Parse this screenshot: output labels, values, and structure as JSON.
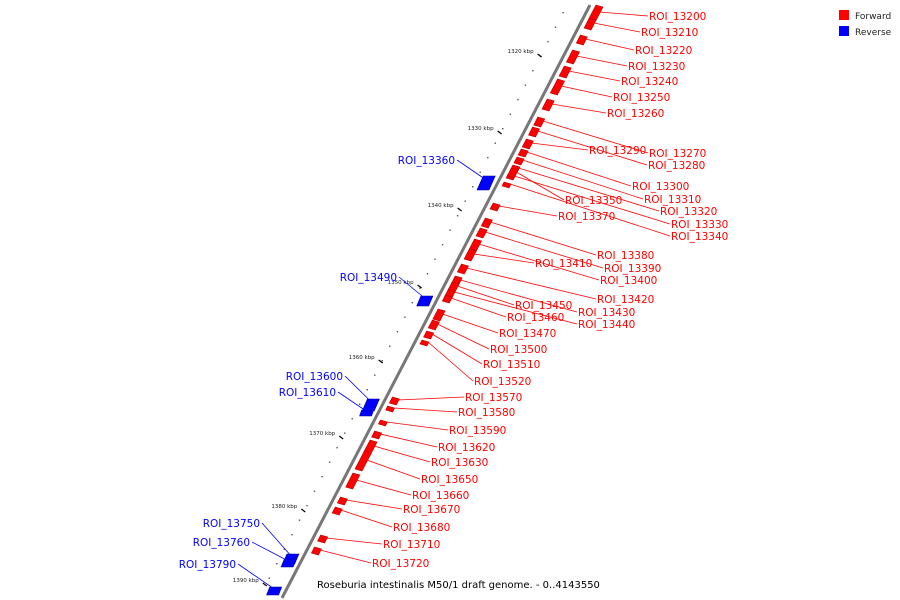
{
  "caption": "Roseburia intestinalis M50/1 draft genome. - 0..4143550",
  "legend": [
    {
      "label": "Forward",
      "color": "#ff0000"
    },
    {
      "label": "Reverse",
      "color": "#0000ff"
    }
  ],
  "colors": {
    "forward": "#ff0000",
    "reverse": "#0000ff",
    "axis": "#777777"
  },
  "ticks": [
    {
      "label": "1320 kbp",
      "kbp": 1320
    },
    {
      "label": "1330 kbp",
      "kbp": 1330
    },
    {
      "label": "1340 kbp",
      "kbp": 1340
    },
    {
      "label": "1350 kbp",
      "kbp": 1350
    },
    {
      "label": "1360 kbp",
      "kbp": 1360
    },
    {
      "label": "1370 kbp",
      "kbp": 1370
    },
    {
      "label": "1380 kbp",
      "kbp": 1380
    },
    {
      "label": "1390 kbp",
      "kbp": 1390
    }
  ],
  "forward_features": [
    {
      "name": "ROI_13200"
    },
    {
      "name": "ROI_13210"
    },
    {
      "name": "ROI_13220"
    },
    {
      "name": "ROI_13230"
    },
    {
      "name": "ROI_13240"
    },
    {
      "name": "ROI_13250"
    },
    {
      "name": "ROI_13260"
    },
    {
      "name": "ROI_13270"
    },
    {
      "name": "ROI_13280"
    },
    {
      "name": "ROI_13290"
    },
    {
      "name": "ROI_13300"
    },
    {
      "name": "ROI_13310"
    },
    {
      "name": "ROI_13320"
    },
    {
      "name": "ROI_13330"
    },
    {
      "name": "ROI_13340"
    },
    {
      "name": "ROI_13350"
    },
    {
      "name": "ROI_13370"
    },
    {
      "name": "ROI_13380"
    },
    {
      "name": "ROI_13390"
    },
    {
      "name": "ROI_13400"
    },
    {
      "name": "ROI_13410"
    },
    {
      "name": "ROI_13420"
    },
    {
      "name": "ROI_13430"
    },
    {
      "name": "ROI_13440"
    },
    {
      "name": "ROI_13450"
    },
    {
      "name": "ROI_13460"
    },
    {
      "name": "ROI_13470"
    },
    {
      "name": "ROI_13500"
    },
    {
      "name": "ROI_13510"
    },
    {
      "name": "ROI_13520"
    },
    {
      "name": "ROI_13570"
    },
    {
      "name": "ROI_13580"
    },
    {
      "name": "ROI_13590"
    },
    {
      "name": "ROI_13620"
    },
    {
      "name": "ROI_13630"
    },
    {
      "name": "ROI_13650"
    },
    {
      "name": "ROI_13660"
    },
    {
      "name": "ROI_13670"
    },
    {
      "name": "ROI_13680"
    },
    {
      "name": "ROI_13710"
    },
    {
      "name": "ROI_13720"
    }
  ],
  "reverse_features": [
    {
      "name": "ROI_13360"
    },
    {
      "name": "ROI_13490"
    },
    {
      "name": "ROI_13600"
    },
    {
      "name": "ROI_13610"
    },
    {
      "name": "ROI_13750"
    },
    {
      "name": "ROI_13760"
    },
    {
      "name": "ROI_13790"
    }
  ]
}
